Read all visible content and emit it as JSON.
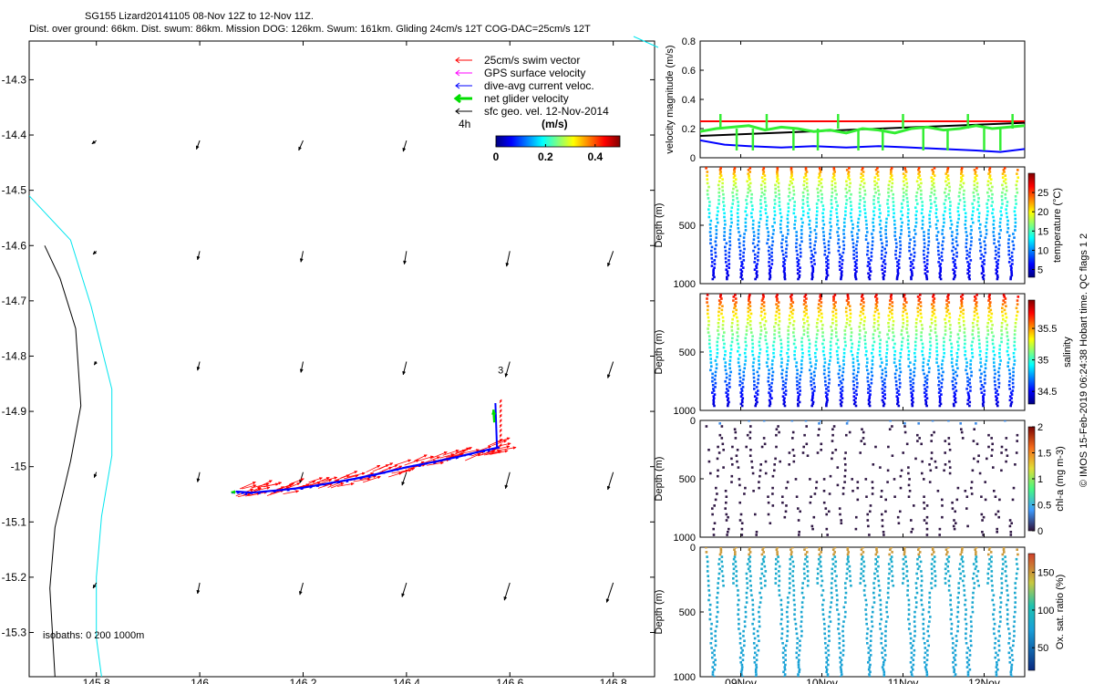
{
  "colors": {
    "swim": "#ff0000",
    "gps": "#ff00ff",
    "dac": "#0000ff",
    "net": "#00dd00",
    "sfc": "#000000",
    "isobath_200": "#00e5ee",
    "isobath_1000": "#000000",
    "speed_red": "#ff0000",
    "speed_green": "#33ee33",
    "speed_blue": "#0000ff",
    "speed_black": "#000000"
  },
  "chart_data": [
    {
      "type": "map",
      "title_line1": "SG155 Lizard20141105 08-Nov 12Z to 12-Nov 11Z.",
      "title_line2": "Dist. over ground: 66km. Dist. swum: 86km. Mission DOG: 126km. Swum: 161km. Gliding 24cm/s 12T COG-DAC=25cm/s 12T",
      "xlim": [
        145.67,
        146.88
      ],
      "ylim": [
        -15.38,
        -14.23
      ],
      "x_ticks": [
        145.8,
        146.0,
        146.2,
        146.4,
        146.6,
        146.8
      ],
      "x_tick_labels": [
        "145.8",
        "146",
        "146.2",
        "146.4",
        "146.6",
        "146.8"
      ],
      "y_ticks": [
        -14.3,
        -14.4,
        -14.5,
        -14.6,
        -14.7,
        -14.8,
        -14.9,
        -15.0,
        -15.1,
        -15.2,
        -15.3
      ],
      "y_tick_labels": [
        "-14.3",
        "-14.4",
        "-14.5",
        "-14.6",
        "-14.7",
        "-14.8",
        "-14.9",
        "-15",
        "-15.1",
        "-15.2",
        "-15.3"
      ],
      "legend": [
        {
          "label": "25cm/s swim vector",
          "color": "#ff0000"
        },
        {
          "label": "GPS surface velocity",
          "color": "#ff00ff"
        },
        {
          "label": "dive-avg current veloc.",
          "color": "#0000ff"
        },
        {
          "label": "net glider velocity",
          "color": "#00dd00"
        },
        {
          "label": "sfc geo. vel. 12-Nov-2014",
          "color": "#000000"
        }
      ],
      "scale_label": "4h",
      "colorbar": {
        "label": "(m/s)",
        "ticks": [
          0,
          0.2,
          0.4
        ],
        "tick_labels": [
          "0",
          "0.2",
          "0.4"
        ],
        "range": [
          0,
          0.5
        ]
      },
      "isobath_label": "isobaths: 0   200  1000m",
      "station_label": "3",
      "isobath_200": [
        [
          145.67,
          -14.51
        ],
        [
          145.75,
          -14.59
        ],
        [
          145.79,
          -14.71
        ],
        [
          145.83,
          -14.86
        ],
        [
          145.83,
          -14.98
        ],
        [
          145.81,
          -15.09
        ],
        [
          145.8,
          -15.2
        ],
        [
          145.8,
          -15.31
        ],
        [
          145.81,
          -15.38
        ]
      ],
      "isobath_1000": [
        [
          145.7,
          -14.6
        ],
        [
          145.73,
          -14.66
        ],
        [
          145.76,
          -14.75
        ],
        [
          145.77,
          -14.89
        ],
        [
          145.75,
          -14.99
        ],
        [
          145.72,
          -15.11
        ],
        [
          145.71,
          -15.22
        ],
        [
          145.72,
          -15.38
        ]
      ],
      "track": [
        [
          146.07,
          -15.045
        ],
        [
          146.1,
          -15.047
        ],
        [
          146.15,
          -15.043
        ],
        [
          146.2,
          -15.038
        ],
        [
          146.25,
          -15.03
        ],
        [
          146.3,
          -15.022
        ],
        [
          146.35,
          -15.012
        ],
        [
          146.4,
          -15.001
        ],
        [
          146.45,
          -14.992
        ],
        [
          146.5,
          -14.982
        ],
        [
          146.55,
          -14.971
        ],
        [
          146.58,
          -14.965
        ]
      ],
      "track_vertical": [
        [
          146.575,
          -14.965
        ],
        [
          146.572,
          -14.885
        ]
      ],
      "sfc_vectors": {
        "lons": [
          145.8,
          146.0,
          146.2,
          146.4,
          146.6,
          146.8
        ],
        "lats": [
          -14.41,
          -14.61,
          -14.81,
          -15.01,
          -15.21
        ],
        "u": [
          [
            -0.04,
            -0.03,
            -0.04,
            -0.03,
            0,
            0
          ],
          [
            -0.03,
            -0.02,
            -0.02,
            -0.02,
            -0.03,
            -0.05
          ],
          [
            -0.02,
            -0.02,
            -0.02,
            -0.03,
            -0.04,
            -0.05
          ],
          [
            -0.02,
            -0.02,
            -0.03,
            -0.04,
            -0.04,
            -0.05
          ],
          [
            -0.03,
            -0.02,
            -0.03,
            -0.04,
            -0.05,
            -0.06
          ]
        ],
        "v": [
          [
            -0.03,
            -0.08,
            -0.09,
            -0.1,
            0,
            0
          ],
          [
            -0.03,
            -0.08,
            -0.1,
            -0.12,
            -0.14,
            -0.14
          ],
          [
            -0.03,
            -0.08,
            -0.1,
            -0.12,
            -0.14,
            -0.15
          ],
          [
            -0.05,
            -0.09,
            -0.1,
            -0.12,
            -0.15,
            -0.16
          ],
          [
            -0.05,
            -0.1,
            -0.11,
            -0.13,
            -0.16,
            -0.18
          ]
        ]
      }
    },
    {
      "type": "line",
      "ylabel": "velocity magnitude (m/s)",
      "ylim": [
        0,
        0.8
      ],
      "y_ticks": [
        0,
        0.2,
        0.4,
        0.6,
        0.8
      ],
      "y_tick_labels": [
        "0",
        "0.2",
        "0.4",
        "0.6",
        "0.8"
      ],
      "x_range_days": [
        0,
        4
      ],
      "series": [
        {
          "color": "#ff0000",
          "x": [
            0,
            4
          ],
          "y": [
            0.25,
            0.25
          ]
        },
        {
          "color": "#000000",
          "x": [
            0,
            4
          ],
          "y": [
            0.15,
            0.24
          ]
        },
        {
          "color": "#0000ff",
          "x": [
            0,
            0.3,
            0.6,
            1,
            1.4,
            1.8,
            2.2,
            2.6,
            3,
            3.4,
            3.7,
            4
          ],
          "y": [
            0.12,
            0.09,
            0.08,
            0.07,
            0.08,
            0.07,
            0.08,
            0.07,
            0.06,
            0.05,
            0.04,
            0.06
          ]
        },
        {
          "color": "#33ee33",
          "x": [
            0,
            0.2,
            0.4,
            0.6,
            0.8,
            1,
            1.2,
            1.4,
            1.6,
            1.8,
            2,
            2.2,
            2.4,
            2.6,
            2.8,
            3,
            3.2,
            3.4,
            3.6,
            3.8,
            4
          ],
          "y": [
            0.18,
            0.2,
            0.21,
            0.22,
            0.19,
            0.21,
            0.2,
            0.18,
            0.19,
            0.17,
            0.2,
            0.19,
            0.17,
            0.2,
            0.21,
            0.19,
            0.2,
            0.22,
            0.2,
            0.21,
            0.22
          ]
        }
      ]
    },
    {
      "type": "scatter",
      "ylabel": "Depth (m)",
      "ylim": [
        1000,
        0
      ],
      "y_tick_labels": [
        "500",
        "1000"
      ],
      "cbar_label": "temperature (°C)",
      "cbar_range": [
        3,
        30
      ],
      "cbar_ticks": [
        5,
        10,
        15,
        20,
        25
      ],
      "cbar_tick_labels": [
        "5",
        "10",
        "15",
        "20",
        "25"
      ],
      "n_dives": 22,
      "max_depth": 960,
      "top_depth": 10
    },
    {
      "type": "scatter",
      "ylabel": "Depth (m)",
      "ylim": [
        1000,
        0
      ],
      "y_tick_labels": [
        "500",
        "1000"
      ],
      "cbar_label": "salinity",
      "cbar_range": [
        34.3,
        35.95
      ],
      "cbar_ticks": [
        34.5,
        35,
        35.5
      ],
      "cbar_tick_labels": [
        "34.5",
        "35",
        "35.5"
      ],
      "n_dives": 22,
      "max_depth": 960,
      "top_depth": 10
    },
    {
      "type": "scatter",
      "ylabel": "Depth (m)",
      "ylim": [
        1000,
        0
      ],
      "y_tick_labels": [
        "0",
        "500",
        "1000"
      ],
      "cbar_label": "chl-a (mg m-3)",
      "cbar_range": [
        0,
        2
      ],
      "cbar_ticks": [
        0,
        0.5,
        1,
        1.5,
        2
      ],
      "cbar_tick_labels": [
        "0",
        "0.5",
        "1",
        "1.5",
        "2"
      ],
      "n_dives": 22,
      "max_depth": 980,
      "top_depth": 0
    },
    {
      "type": "scatter",
      "ylabel": "Depth (m)",
      "ylim": [
        1000,
        0
      ],
      "y_tick_labels": [
        "0",
        "500",
        "1000"
      ],
      "cbar_label": "Ox. sat. ratio (%)",
      "cbar_range": [
        20,
        175
      ],
      "cbar_ticks": [
        50,
        100,
        150
      ],
      "cbar_tick_labels": [
        "50",
        "100",
        "150"
      ],
      "x_ticks_days": [
        0.5,
        1.5,
        2.5,
        3.5
      ],
      "x_tick_labels": [
        "09Nov",
        "10Nov",
        "11Nov",
        "12Nov"
      ],
      "n_dives": 22,
      "max_depth": 1000,
      "top_depth": 0
    }
  ],
  "footer_text": "© IMOS 15-Feb-2019 06:24:38 Hobart time. QC flags 1  2"
}
